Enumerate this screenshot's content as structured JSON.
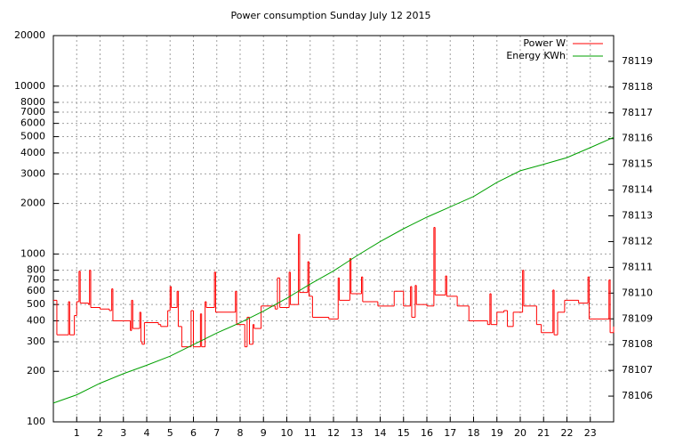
{
  "chart_data": {
    "type": "line",
    "title": "Power consumption Sunday July 12 2015",
    "xlim": [
      0,
      24
    ],
    "xticks": [
      1,
      2,
      3,
      4,
      5,
      6,
      7,
      8,
      9,
      10,
      11,
      12,
      13,
      14,
      15,
      16,
      17,
      18,
      19,
      20,
      21,
      22,
      23
    ],
    "ylim": [
      100,
      20000
    ],
    "log_y": true,
    "yticks": [
      100,
      200,
      300,
      400,
      500,
      600,
      700,
      800,
      1000,
      2000,
      3000,
      4000,
      5000,
      6000,
      7000,
      8000,
      10000,
      20000
    ],
    "y2lim": [
      78105,
      78120
    ],
    "y2ticks": [
      78106,
      78107,
      78108,
      78109,
      78110,
      78111,
      78112,
      78113,
      78114,
      78115,
      78116,
      78117,
      78118,
      78119
    ],
    "grid": true,
    "legend": "top-right",
    "series": [
      {
        "name": "Power W",
        "color": "#ff0000",
        "step": true,
        "x": [
          0,
          0.15,
          0.65,
          0.7,
          0.9,
          1.0,
          1.1,
          1.15,
          1.5,
          1.55,
          1.6,
          2,
          2.4,
          2.5,
          2.55,
          3,
          3.3,
          3.35,
          3.4,
          3.7,
          3.75,
          3.8,
          3.9,
          4.5,
          4.6,
          4.9,
          5.0,
          5.05,
          5.3,
          5.35,
          5.5,
          5.9,
          6,
          6.3,
          6.35,
          6.5,
          6.55,
          6.9,
          6.95,
          7.8,
          7.85,
          8.2,
          8.3,
          8.4,
          8.55,
          8.6,
          8.9,
          9.5,
          9.6,
          9.7,
          10.1,
          10.15,
          10.5,
          10.55,
          10.9,
          10.95,
          11.1,
          11.8,
          12.2,
          12.25,
          12.7,
          12.75,
          13.2,
          13.25,
          13.9,
          14.6,
          15,
          15.3,
          15.35,
          15.5,
          15.55,
          16,
          16.3,
          16.35,
          16.8,
          16.85,
          17.3,
          17.8,
          18.6,
          18.7,
          18.75,
          19,
          19.3,
          19.45,
          19.7,
          20.1,
          20.15,
          20.7,
          20.9,
          21.4,
          21.45,
          21.6,
          21.9,
          22.5,
          22.9,
          22.95,
          23.8,
          23.85,
          24
        ],
        "values": [
          530,
          330,
          520,
          330,
          430,
          520,
          790,
          510,
          500,
          800,
          480,
          470,
          460,
          620,
          400,
          400,
          350,
          530,
          360,
          450,
          300,
          290,
          390,
          380,
          370,
          460,
          640,
          480,
          600,
          370,
          280,
          460,
          280,
          440,
          280,
          520,
          480,
          780,
          450,
          600,
          380,
          280,
          420,
          290,
          380,
          360,
          490,
          470,
          720,
          480,
          780,
          500,
          1310,
          590,
          900,
          560,
          420,
          410,
          720,
          530,
          940,
          580,
          730,
          520,
          490,
          600,
          490,
          640,
          420,
          650,
          500,
          490,
          1440,
          570,
          740,
          560,
          490,
          400,
          380,
          580,
          380,
          450,
          460,
          370,
          450,
          800,
          490,
          380,
          340,
          610,
          330,
          450,
          530,
          510,
          730,
          410,
          700,
          340,
          370
        ]
      },
      {
        "name": "Energy KWh",
        "color": "#00a000",
        "axis": "y2",
        "x": [
          0,
          1,
          2,
          3,
          4,
          5,
          6,
          7,
          8,
          9,
          10,
          11,
          12,
          13,
          14,
          15,
          16,
          17,
          18,
          19,
          20,
          21,
          22,
          23,
          24
        ],
        "values": [
          78105.73,
          78106.05,
          78106.5,
          78106.87,
          78107.2,
          78107.55,
          78108.0,
          78108.45,
          78108.85,
          78109.3,
          78109.8,
          78110.35,
          78110.86,
          78111.45,
          78112.0,
          78112.5,
          78112.95,
          78113.35,
          78113.75,
          78114.3,
          78114.75,
          78115.0,
          78115.26,
          78115.65,
          78116.05
        ]
      }
    ]
  }
}
